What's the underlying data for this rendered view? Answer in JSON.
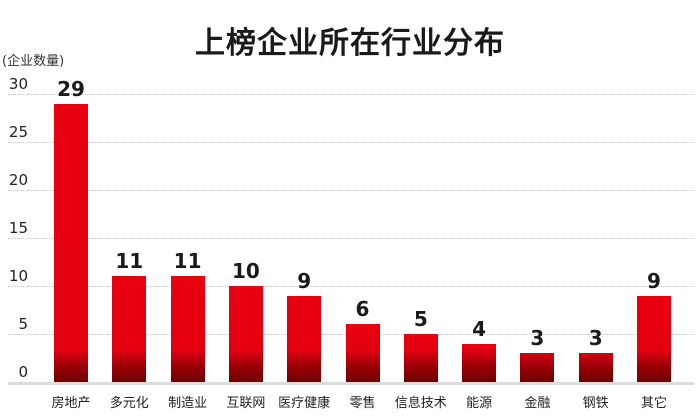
{
  "chart_data": {
    "type": "bar",
    "title": "上榜企业所在行业分布",
    "ylabel": "(企业数量)",
    "xlabel": "",
    "categories": [
      "房地产",
      "多元化",
      "制造业",
      "互联网",
      "医疗健康",
      "零售",
      "信息技术",
      "能源",
      "金融",
      "钢铁",
      "其它"
    ],
    "values": [
      29,
      11,
      11,
      10,
      9,
      6,
      5,
      4,
      3,
      3,
      9
    ],
    "ylim": [
      0,
      30
    ],
    "yticks": [
      0,
      5,
      10,
      15,
      20,
      25,
      30
    ],
    "grid": true,
    "legend": null,
    "data_labels": true,
    "bar_color_top": "#e8000f",
    "bar_color_bottom": "#6b0000"
  }
}
